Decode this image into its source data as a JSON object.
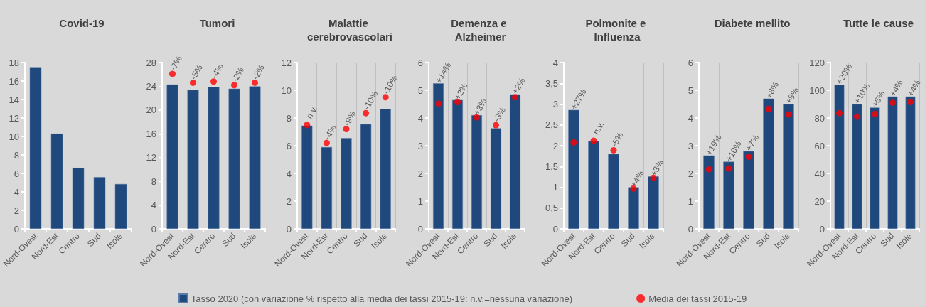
{
  "chart_data": [
    {
      "type": "bar",
      "title": "Covid-19",
      "categories": [
        "Nord-Ovest",
        "Nord-Est",
        "Centro",
        "Sud",
        "Isole"
      ],
      "ylim": [
        0,
        18
      ],
      "yticks": [
        0,
        2,
        4,
        6,
        8,
        10,
        12,
        14,
        16,
        18
      ],
      "grid": false,
      "series": [
        {
          "color": "#1f497d",
          "values": [
            17.5,
            10.3,
            6.6,
            5.6,
            4.85
          ]
        }
      ]
    },
    {
      "type": "bar",
      "title": "Tumori",
      "categories": [
        "Nord-Ovest",
        "Nord-Est",
        "Centro",
        "Sud",
        "Isole"
      ],
      "ylim": [
        0,
        28
      ],
      "yticks": [
        0,
        4,
        8,
        12,
        16,
        20,
        24,
        28
      ],
      "grid": false,
      "annotations": [
        {
          "text": "-7%",
          "x": "Nord-Ovest",
          "y": 24.3
        },
        {
          "text": "-5%",
          "x": "Nord-Est",
          "y": 23.4
        },
        {
          "text": "-4%",
          "x": "Centro",
          "y": 23.9
        },
        {
          "text": "-2%",
          "x": "Sud",
          "y": 23.6
        },
        {
          "text": "-2%",
          "x": "Isole",
          "y": 24.0
        }
      ],
      "series": [
        {
          "color": "#1f497d",
          "values": [
            24.3,
            23.4,
            23.9,
            23.6,
            24.0
          ]
        },
        {
          "type": "scatter",
          "marker": "circle",
          "color": "#ff0000",
          "x": [
            "Nord-Ovest",
            "Nord-Est",
            "Centro",
            "Sud",
            "Isole"
          ],
          "values": [
            26.1,
            24.6,
            24.8,
            24.2,
            24.6
          ]
        }
      ]
    },
    {
      "type": "bar",
      "title": "Malattie cerebrovascolari",
      "categories": [
        "Nord-Ovest",
        "Nord-Est",
        "Centro",
        "Sud",
        "Isole"
      ],
      "ylim": [
        0,
        12
      ],
      "yticks": [
        0,
        2,
        4,
        6,
        8,
        10,
        12
      ],
      "grid": "x",
      "legend": "bottom",
      "annotations": [
        {
          "text": "n.v.",
          "x": "Nord-Ovest",
          "y": 7.45
        },
        {
          "text": "-4%",
          "x": "Nord-Est",
          "y": 5.9
        },
        {
          "text": "-9%",
          "x": "Centro",
          "y": 6.55
        },
        {
          "text": "-10%",
          "x": "Sud",
          "y": 7.55
        },
        {
          "text": "-10%",
          "x": "Isole",
          "y": 8.65
        }
      ],
      "series": [
        {
          "name": "Tasso 2020 (con variazione % rispetto alla media dei tassi 2015-19: n.v.=nessuna variazione)",
          "color": "#1f497d",
          "values": [
            7.45,
            5.9,
            6.55,
            7.55,
            8.65
          ]
        },
        {
          "name": "Media dei tassi 2015-19",
          "type": "scatter",
          "marker": "circle",
          "color": "#ff0000",
          "x": [
            "Nord-Ovest",
            "Nord-Est",
            "Centro",
            "Sud",
            "Isole"
          ],
          "values": [
            7.5,
            6.2,
            7.2,
            8.35,
            9.5
          ]
        }
      ]
    },
    {
      "type": "bar",
      "title": "Demenza e Alzheimer",
      "categories": [
        "Nord-Ovest",
        "Nord-Est",
        "Centro",
        "Sud",
        "Isole"
      ],
      "ylim": [
        0,
        6
      ],
      "yticks": [
        0,
        1,
        2,
        3,
        4,
        5,
        6
      ],
      "grid": "x",
      "annotations": [
        {
          "text": "+14%",
          "x": "Nord-Ovest",
          "y": 5.25
        },
        {
          "text": "+2%",
          "x": "Nord-Est",
          "y": 4.65
        },
        {
          "text": "+3%",
          "x": "Centro",
          "y": 4.1
        },
        {
          "text": "-3%",
          "x": "Sud",
          "y": 3.63
        },
        {
          "text": "+2%",
          "x": "Isole",
          "y": 4.85
        }
      ],
      "series": [
        {
          "color": "#1f497d",
          "values": [
            5.25,
            4.65,
            4.1,
            3.63,
            4.85
          ]
        },
        {
          "type": "scatter",
          "marker": "circle",
          "color": "#ff0000",
          "x": [
            "Nord-Ovest",
            "Nord-Est",
            "Centro",
            "Sud",
            "Isole"
          ],
          "values": [
            4.52,
            4.58,
            4.02,
            3.74,
            4.75
          ]
        }
      ]
    },
    {
      "type": "bar",
      "title": "Polmonite e Influenza",
      "categories": [
        "Nord-Ovest",
        "Nord-Est",
        "Centro",
        "Sud",
        "Isole"
      ],
      "ylim": [
        0,
        4
      ],
      "yticks": [
        0,
        {
          "value": 0.5,
          "label": "0,5"
        },
        1,
        {
          "value": 1.5,
          "label": "1,5"
        },
        2,
        {
          "value": 2.5,
          "label": "2,5"
        },
        3,
        {
          "value": 3.5,
          "label": "3,5"
        },
        4
      ],
      "grid": "x",
      "annotations": [
        {
          "text": "+27%",
          "x": "Nord-Ovest",
          "y": 2.86
        },
        {
          "text": "n.v.",
          "x": "Nord-Est",
          "y": 2.11
        },
        {
          "text": "-5%",
          "x": "Centro",
          "y": 1.8
        },
        {
          "text": "+4%",
          "x": "Sud",
          "y": 1.0
        },
        {
          "text": "+3%",
          "x": "Isole",
          "y": 1.26
        }
      ],
      "series": [
        {
          "color": "#1f497d",
          "values": [
            2.86,
            2.11,
            1.8,
            1.0,
            1.26
          ]
        },
        {
          "type": "scatter",
          "marker": "circle",
          "color": "#ff0000",
          "x": [
            "Nord-Ovest",
            "Nord-Est",
            "Centro",
            "Sud",
            "Isole"
          ],
          "values": [
            2.08,
            2.12,
            1.89,
            0.97,
            1.23
          ]
        }
      ]
    },
    {
      "type": "bar",
      "title": "Diabete mellito",
      "categories": [
        "Nord-Ovest",
        "Nord-Est",
        "Centro",
        "Sud",
        "Isole"
      ],
      "ylim": [
        0,
        6
      ],
      "yticks": [
        0,
        1,
        2,
        3,
        4,
        5,
        6
      ],
      "grid": "x",
      "annotations": [
        {
          "text": "+19%",
          "x": "Nord-Ovest",
          "y": 2.65
        },
        {
          "text": "+10%",
          "x": "Nord-Est",
          "y": 2.42
        },
        {
          "text": "+7%",
          "x": "Centro",
          "y": 2.8
        },
        {
          "text": "+8%",
          "x": "Sud",
          "y": 4.7
        },
        {
          "text": "+8%",
          "x": "Isole",
          "y": 4.5
        }
      ],
      "series": [
        {
          "color": "#1f497d",
          "values": [
            2.65,
            2.42,
            2.8,
            4.7,
            4.5
          ]
        },
        {
          "type": "scatter",
          "marker": "circle",
          "color": "#ff0000",
          "x": [
            "Nord-Ovest",
            "Nord-Est",
            "Centro",
            "Sud",
            "Isole"
          ],
          "values": [
            2.15,
            2.18,
            2.6,
            4.33,
            4.13
          ]
        }
      ]
    },
    {
      "type": "bar",
      "title": "Tutte le cause",
      "categories": [
        "Nord-Ovest",
        "Nord-Est",
        "Centro",
        "Sud",
        "Isole"
      ],
      "ylim": [
        0,
        120
      ],
      "yticks": [
        0,
        20,
        40,
        60,
        80,
        100,
        120
      ],
      "grid": "x",
      "annotations": [
        {
          "text": "+20%",
          "x": "Nord-Ovest",
          "y": 104
        },
        {
          "text": "+10%",
          "x": "Nord-Est",
          "y": 90
        },
        {
          "text": "+5%",
          "x": "Centro",
          "y": 87.5
        },
        {
          "text": "+4%",
          "x": "Sud",
          "y": 95.5
        },
        {
          "text": "+4%",
          "x": "Isole",
          "y": 95.5
        }
      ],
      "series": [
        {
          "color": "#1f497d",
          "values": [
            104,
            90,
            87.5,
            95.5,
            95.5
          ]
        },
        {
          "type": "scatter",
          "marker": "circle",
          "color": "#ff0000",
          "x": [
            "Nord-Ovest",
            "Nord-Est",
            "Centro",
            "Sud",
            "Isole"
          ],
          "values": [
            83.5,
            81,
            83,
            91,
            91.5
          ]
        }
      ]
    }
  ]
}
